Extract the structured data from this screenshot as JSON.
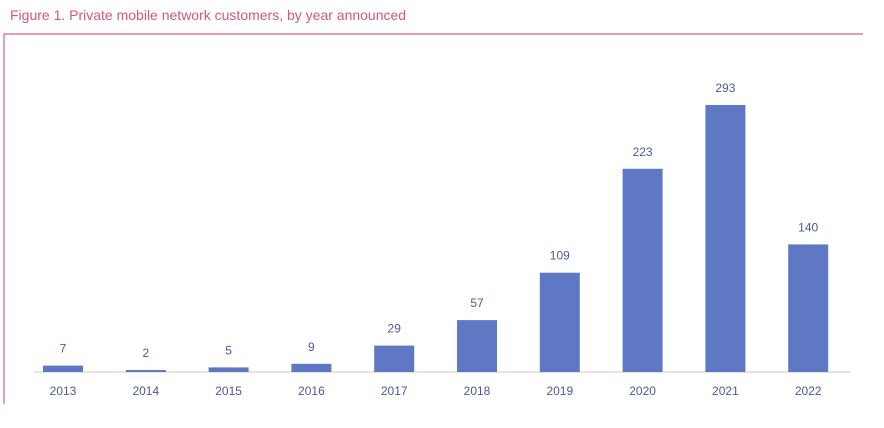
{
  "colors": {
    "title": "#d6557f",
    "frame": "#e07a9a",
    "bar": "#5f78c4",
    "label": "#4a5a9c",
    "axis": "#c8c8c8"
  },
  "chart_data": {
    "type": "bar",
    "title": "Figure 1. Private mobile network customers, by year announced",
    "categories": [
      "2013",
      "2014",
      "2015",
      "2016",
      "2017",
      "2018",
      "2019",
      "2020",
      "2021",
      "2022"
    ],
    "values": [
      7,
      2,
      5,
      9,
      29,
      57,
      109,
      223,
      293,
      140
    ],
    "xlabel": "",
    "ylabel": "",
    "ylim": [
      0,
      293
    ],
    "grid": false,
    "legend": "none"
  }
}
